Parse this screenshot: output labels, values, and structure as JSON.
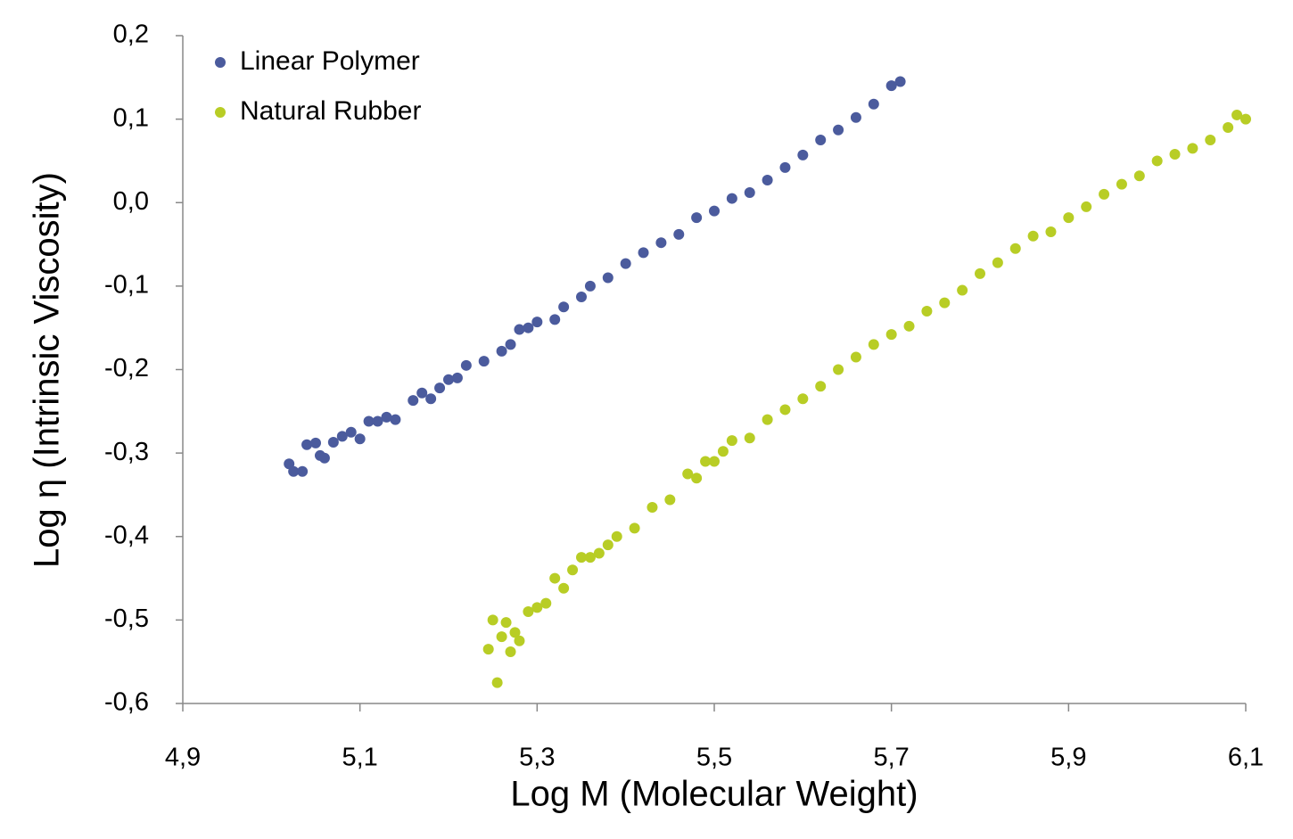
{
  "chart_data": {
    "type": "scatter",
    "x_label": "Log M (Molecular Weight)",
    "y_label": "Log η (Intrinsic Viscosity)",
    "xlim": [
      4.9,
      6.1
    ],
    "ylim": [
      -0.6,
      0.2
    ],
    "xticks": [
      {
        "value": 4.9,
        "label": "4,9"
      },
      {
        "value": 5.1,
        "label": "5,1"
      },
      {
        "value": 5.3,
        "label": "5,3"
      },
      {
        "value": 5.5,
        "label": "5,5"
      },
      {
        "value": 5.7,
        "label": "5,7"
      },
      {
        "value": 5.9,
        "label": "5,9"
      },
      {
        "value": 6.1,
        "label": "6,1"
      }
    ],
    "yticks": [
      {
        "value": -0.6,
        "label": "-0,6"
      },
      {
        "value": -0.5,
        "label": "-0,5"
      },
      {
        "value": -0.4,
        "label": "-0,4"
      },
      {
        "value": -0.3,
        "label": "-0,3"
      },
      {
        "value": -0.2,
        "label": "-0,2"
      },
      {
        "value": -0.1,
        "label": "-0,1"
      },
      {
        "value": 0,
        "label": "0,0"
      },
      {
        "value": 0.1,
        "label": "0,1"
      },
      {
        "value": 0.2,
        "label": "0,2"
      }
    ],
    "legend": "upper left",
    "series": [
      {
        "name": "Linear Polymer",
        "color": "#4b5b9d",
        "x": [
          5.02,
          5.025,
          5.035,
          5.04,
          5.05,
          5.055,
          5.06,
          5.07,
          5.08,
          5.09,
          5.1,
          5.11,
          5.12,
          5.13,
          5.14,
          5.16,
          5.17,
          5.18,
          5.19,
          5.2,
          5.21,
          5.22,
          5.24,
          5.26,
          5.27,
          5.28,
          5.29,
          5.3,
          5.32,
          5.33,
          5.35,
          5.36,
          5.38,
          5.4,
          5.42,
          5.44,
          5.46,
          5.48,
          5.5,
          5.52,
          5.54,
          5.56,
          5.58,
          5.6,
          5.62,
          5.64,
          5.66,
          5.68,
          5.7,
          5.71
        ],
        "values": [
          -0.313,
          -0.322,
          -0.322,
          -0.29,
          -0.288,
          -0.303,
          -0.306,
          -0.287,
          -0.28,
          -0.275,
          -0.283,
          -0.262,
          -0.262,
          -0.257,
          -0.26,
          -0.237,
          -0.228,
          -0.235,
          -0.222,
          -0.212,
          -0.21,
          -0.195,
          -0.19,
          -0.178,
          -0.17,
          -0.152,
          -0.15,
          -0.143,
          -0.14,
          -0.125,
          -0.113,
          -0.1,
          -0.09,
          -0.073,
          -0.06,
          -0.048,
          -0.038,
          -0.018,
          -0.01,
          0.005,
          0.012,
          0.027,
          0.042,
          0.057,
          0.075,
          0.087,
          0.102,
          0.118,
          0.14,
          0.145
        ]
      },
      {
        "name": "Natural Rubber",
        "color": "#b8cd25",
        "x": [
          5.245,
          5.25,
          5.255,
          5.26,
          5.265,
          5.27,
          5.275,
          5.28,
          5.29,
          5.3,
          5.31,
          5.32,
          5.33,
          5.34,
          5.35,
          5.36,
          5.37,
          5.38,
          5.39,
          5.41,
          5.43,
          5.45,
          5.47,
          5.48,
          5.49,
          5.5,
          5.51,
          5.52,
          5.54,
          5.56,
          5.58,
          5.6,
          5.62,
          5.64,
          5.66,
          5.68,
          5.7,
          5.72,
          5.74,
          5.76,
          5.78,
          5.8,
          5.82,
          5.84,
          5.86,
          5.88,
          5.9,
          5.92,
          5.94,
          5.96,
          5.98,
          6.0,
          6.02,
          6.04,
          6.06,
          6.08,
          6.09,
          6.1
        ],
        "values": [
          -0.535,
          -0.5,
          -0.575,
          -0.52,
          -0.503,
          -0.538,
          -0.515,
          -0.525,
          -0.49,
          -0.485,
          -0.48,
          -0.45,
          -0.462,
          -0.44,
          -0.425,
          -0.425,
          -0.42,
          -0.41,
          -0.4,
          -0.39,
          -0.365,
          -0.356,
          -0.325,
          -0.33,
          -0.31,
          -0.31,
          -0.298,
          -0.285,
          -0.282,
          -0.26,
          -0.248,
          -0.235,
          -0.22,
          -0.2,
          -0.185,
          -0.17,
          -0.158,
          -0.148,
          -0.13,
          -0.12,
          -0.105,
          -0.085,
          -0.072,
          -0.055,
          -0.04,
          -0.035,
          -0.018,
          -0.005,
          0.01,
          0.022,
          0.032,
          0.05,
          0.058,
          0.065,
          0.075,
          0.09,
          0.105,
          0.1
        ]
      }
    ]
  }
}
